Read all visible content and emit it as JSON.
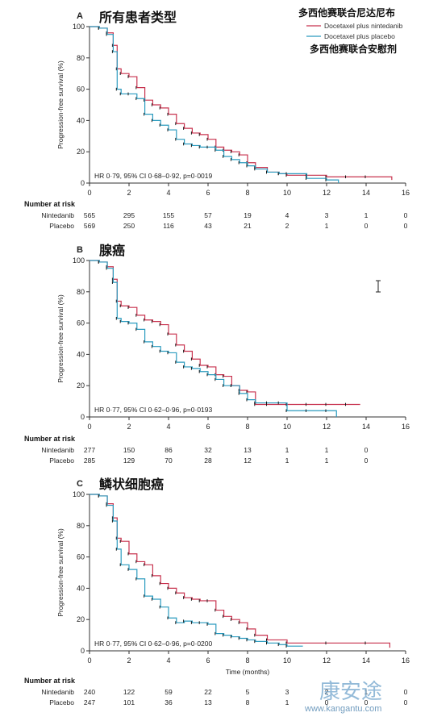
{
  "legend": {
    "title_top": "多西他赛联合尼达尼布",
    "title_bottom": "多西他赛联合安慰剂",
    "series_1": "Docetaxel plus nintedanib",
    "series_2": "Docetaxel plus placebo"
  },
  "colors": {
    "nintedanib": "#c8334f",
    "placebo": "#2b9bbf",
    "axis": "#333333"
  },
  "common": {
    "ylabel": "Progression-free survival (%)",
    "xlabel": "Time (months)",
    "risk_heading": "Number at risk",
    "risk_row_labels": [
      "Nintedanib",
      "Placebo"
    ],
    "x_ticks": [
      0,
      2,
      4,
      6,
      8,
      10,
      12,
      14,
      16
    ],
    "y_ticks": [
      0,
      20,
      40,
      60,
      80,
      100
    ]
  },
  "watermark": {
    "text": "康安途",
    "url": "www.kangantu.com"
  },
  "chart_data": [
    {
      "type": "line",
      "panel": "A",
      "title": "所有患者类型",
      "annotation": "HR 0·79, 95% CI 0·68–0·92, p=0·0019",
      "xlim": [
        0,
        16
      ],
      "ylim": [
        0,
        100
      ],
      "series": [
        {
          "name": "Docetaxel plus nintedanib",
          "x": [
            0,
            0.5,
            0.9,
            1.2,
            1.4,
            1.6,
            2.0,
            2.4,
            2.8,
            3.2,
            3.6,
            4.0,
            4.4,
            4.8,
            5.2,
            5.6,
            6.0,
            6.4,
            6.8,
            7.2,
            7.6,
            8.0,
            8.4,
            9.0,
            9.6,
            10.0,
            11.0,
            12.0,
            13.0,
            14.0,
            15.3
          ],
          "y": [
            100,
            99,
            96,
            88,
            73,
            70,
            68,
            61,
            53,
            50,
            48,
            44,
            38,
            35,
            32,
            31,
            28,
            23,
            21,
            20,
            18,
            13,
            10,
            7,
            6,
            5,
            5,
            4,
            4,
            4,
            2
          ]
        },
        {
          "name": "Docetaxel plus placebo",
          "x": [
            0,
            0.5,
            0.9,
            1.2,
            1.4,
            1.6,
            2.0,
            2.4,
            2.8,
            3.2,
            3.6,
            4.0,
            4.4,
            4.8,
            5.2,
            5.6,
            6.0,
            6.4,
            6.8,
            7.2,
            7.6,
            8.0,
            8.4,
            9.0,
            9.6,
            10.0,
            11.0,
            12.0,
            12.6
          ],
          "y": [
            100,
            99,
            95,
            84,
            60,
            57,
            57,
            54,
            44,
            40,
            37,
            34,
            28,
            25,
            24,
            23,
            23,
            21,
            17,
            15,
            13,
            11,
            9,
            7,
            6,
            6,
            3,
            2,
            0
          ]
        }
      ],
      "risk_x": [
        0,
        2,
        4,
        6,
        8,
        10,
        12,
        14,
        16
      ],
      "risk_rows": [
        [
          "565",
          "295",
          "155",
          "57",
          "19",
          "4",
          "3",
          "1",
          "0"
        ],
        [
          "569",
          "250",
          "116",
          "43",
          "21",
          "2",
          "1",
          "0",
          "0"
        ]
      ]
    },
    {
      "type": "line",
      "panel": "B",
      "title": "腺癌",
      "annotation": "HR 0·77, 95% CI 0·62–0·96, p=0·0193",
      "xlim": [
        0,
        16
      ],
      "ylim": [
        0,
        100
      ],
      "series": [
        {
          "name": "Docetaxel plus nintedanib",
          "x": [
            0,
            0.5,
            0.9,
            1.2,
            1.4,
            1.6,
            2.0,
            2.4,
            2.8,
            3.2,
            3.6,
            4.0,
            4.4,
            4.8,
            5.2,
            5.6,
            6.0,
            6.4,
            6.8,
            7.2,
            7.6,
            8.0,
            8.4,
            9.0,
            10.0,
            11.0,
            12.0,
            13.0,
            13.7
          ],
          "y": [
            100,
            99,
            96,
            88,
            74,
            71,
            70,
            65,
            62,
            61,
            59,
            53,
            46,
            42,
            37,
            33,
            32,
            27,
            26,
            20,
            17,
            16,
            8,
            8,
            8,
            8,
            8,
            8,
            8
          ]
        },
        {
          "name": "Docetaxel plus placebo",
          "x": [
            0,
            0.5,
            0.9,
            1.2,
            1.4,
            1.6,
            2.0,
            2.4,
            2.8,
            3.2,
            3.6,
            4.0,
            4.4,
            4.8,
            5.2,
            5.6,
            6.0,
            6.4,
            6.8,
            7.2,
            7.6,
            8.0,
            8.4,
            9.0,
            9.6,
            10.0,
            11.0,
            12.0,
            12.5
          ],
          "y": [
            100,
            99,
            95,
            86,
            63,
            61,
            60,
            56,
            48,
            45,
            42,
            41,
            35,
            32,
            31,
            29,
            27,
            24,
            20,
            20,
            15,
            11,
            9,
            9,
            9,
            4,
            4,
            4,
            0
          ]
        }
      ],
      "risk_x": [
        0,
        2,
        4,
        6,
        8,
        10,
        12,
        14
      ],
      "risk_rows": [
        [
          "277",
          "150",
          "86",
          "32",
          "13",
          "1",
          "1",
          "0"
        ],
        [
          "285",
          "129",
          "70",
          "28",
          "12",
          "1",
          "1",
          "0"
        ]
      ]
    },
    {
      "type": "line",
      "panel": "C",
      "title": "鳞状细胞癌",
      "annotation": "HR 0·77, 95% CI 0·62–0·96, p=0·0200",
      "xlim": [
        0,
        16
      ],
      "ylim": [
        0,
        100
      ],
      "series": [
        {
          "name": "Docetaxel plus nintedanib",
          "x": [
            0,
            0.5,
            0.9,
            1.2,
            1.4,
            1.6,
            2.0,
            2.4,
            2.8,
            3.2,
            3.6,
            4.0,
            4.4,
            4.8,
            5.2,
            5.6,
            6.0,
            6.4,
            6.8,
            7.2,
            7.6,
            8.0,
            8.4,
            9.0,
            10.0,
            12.0,
            14.0,
            15.2
          ],
          "y": [
            100,
            99,
            94,
            85,
            72,
            70,
            62,
            57,
            55,
            48,
            43,
            40,
            37,
            34,
            33,
            32,
            32,
            26,
            22,
            20,
            18,
            14,
            10,
            7,
            5,
            5,
            5,
            2
          ]
        },
        {
          "name": "Docetaxel plus placebo",
          "x": [
            0,
            0.5,
            0.9,
            1.2,
            1.4,
            1.6,
            2.0,
            2.4,
            2.8,
            3.2,
            3.6,
            4.0,
            4.4,
            4.8,
            5.2,
            5.6,
            6.0,
            6.4,
            6.8,
            7.2,
            7.6,
            8.0,
            8.4,
            9.0,
            9.6,
            10.0,
            10.8
          ],
          "y": [
            100,
            99,
            93,
            83,
            65,
            55,
            52,
            46,
            35,
            33,
            28,
            21,
            18,
            19,
            18,
            18,
            17,
            11,
            10,
            9,
            8,
            7,
            6,
            5,
            4,
            3,
            3
          ]
        }
      ],
      "risk_x": [
        0,
        2,
        4,
        6,
        8,
        10,
        12,
        14,
        16
      ],
      "risk_rows": [
        [
          "240",
          "122",
          "59",
          "22",
          "5",
          "3",
          "2",
          "1",
          "0"
        ],
        [
          "247",
          "101",
          "36",
          "13",
          "8",
          "1",
          "0",
          "0",
          "0"
        ]
      ]
    }
  ]
}
